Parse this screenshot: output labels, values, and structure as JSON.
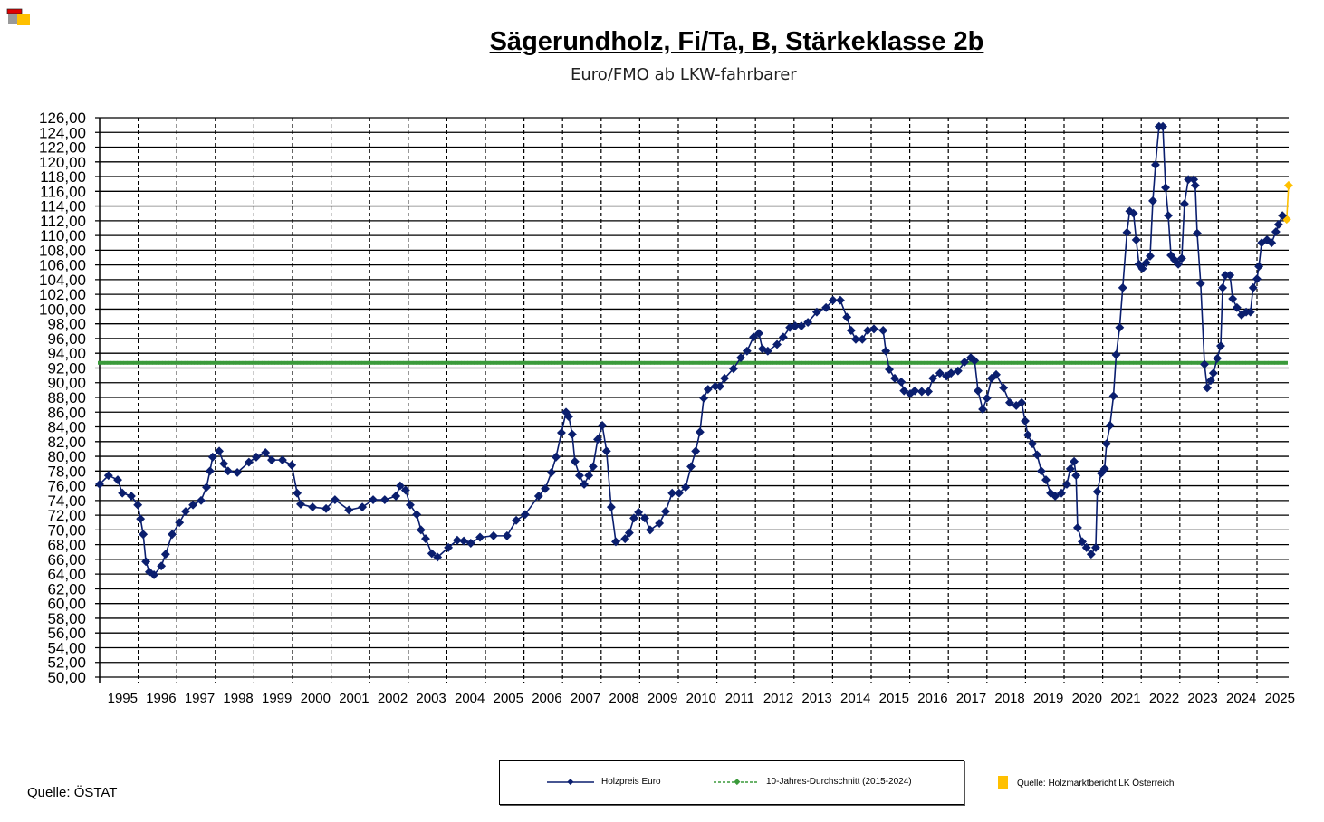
{
  "colors": {
    "series": "#0A1E6E",
    "average": "#3A9A3A",
    "estimate": "#FFC000",
    "grid": "#000000"
  },
  "legend": {
    "series_label": "Holzpreis Euro",
    "average_label": "10-Jahres-Durchschnitt (2015-2024)"
  },
  "source_left": "Quelle: ÖSTAT",
  "source_right": "Quelle: Holzmarktbericht LK Österreich",
  "chart_data": {
    "type": "line",
    "title": "Sägerundholz, Fi/Ta, B, Stärkeklasse 2b",
    "subtitle": "Euro/FMO ab LKW-fahrbarer",
    "ylim": [
      50,
      126
    ],
    "ytick_step": 2,
    "ytick_labels": [
      "126,00",
      "124,00",
      "122,00",
      "120,00",
      "118,00",
      "116,00",
      "114,00",
      "112,00",
      "110,00",
      "108,00",
      "106,00",
      "104,00",
      "102,00",
      "100,00",
      "98,00",
      "96,00",
      "94,00",
      "92,00",
      "90,00",
      "88,00",
      "86,00",
      "84,00",
      "82,00",
      "80,00",
      "78,00",
      "76,00",
      "74,00",
      "72,00",
      "70,00",
      "68,00",
      "66,00",
      "64,00",
      "62,00",
      "60,00",
      "58,00",
      "56,00",
      "54,00",
      "52,00",
      "50,00"
    ],
    "xlim": [
      1995,
      2025.83
    ],
    "xtick_labels": [
      "1995",
      "1996",
      "1997",
      "1998",
      "1999",
      "2000",
      "2001",
      "2002",
      "2003",
      "2004",
      "2005",
      "2006",
      "2007",
      "2008",
      "2009",
      "2010",
      "2011",
      "2012",
      "2013",
      "2014",
      "2015",
      "2016",
      "2017",
      "2018",
      "2019",
      "2020",
      "2021",
      "2022",
      "2023",
      "2024",
      "2025"
    ],
    "grid": true,
    "legend_position": "bottom",
    "series": [
      {
        "name": "Holzpreis Euro",
        "points": [
          [
            1995.0,
            76.2
          ],
          [
            1995.23,
            77.4
          ],
          [
            1995.47,
            76.8
          ],
          [
            1995.59,
            75.0
          ],
          [
            1995.82,
            74.6
          ],
          [
            1995.99,
            73.4
          ],
          [
            1996.06,
            71.5
          ],
          [
            1996.13,
            69.4
          ],
          [
            1996.2,
            65.7
          ],
          [
            1996.29,
            64.3
          ],
          [
            1996.41,
            63.9
          ],
          [
            1996.6,
            65.1
          ],
          [
            1996.71,
            66.7
          ],
          [
            1996.88,
            69.4
          ],
          [
            1997.07,
            71.0
          ],
          [
            1997.23,
            72.5
          ],
          [
            1997.42,
            73.4
          ],
          [
            1997.63,
            74.0
          ],
          [
            1997.77,
            75.8
          ],
          [
            1997.86,
            78.0
          ],
          [
            1997.93,
            79.9
          ],
          [
            1998.1,
            80.7
          ],
          [
            1998.22,
            79.0
          ],
          [
            1998.33,
            78.0
          ],
          [
            1998.57,
            77.8
          ],
          [
            1998.87,
            79.2
          ],
          [
            1999.06,
            79.9
          ],
          [
            1999.3,
            80.5
          ],
          [
            1999.46,
            79.5
          ],
          [
            1999.74,
            79.5
          ],
          [
            1999.98,
            78.8
          ],
          [
            2000.12,
            75.0
          ],
          [
            2000.21,
            73.5
          ],
          [
            2000.52,
            73.1
          ],
          [
            2000.87,
            72.9
          ],
          [
            2001.1,
            74.1
          ],
          [
            2001.46,
            72.7
          ],
          [
            2001.81,
            73.1
          ],
          [
            2002.09,
            74.1
          ],
          [
            2002.39,
            74.1
          ],
          [
            2002.68,
            74.6
          ],
          [
            2002.79,
            76.0
          ],
          [
            2002.93,
            75.4
          ],
          [
            2003.05,
            73.4
          ],
          [
            2003.22,
            72.1
          ],
          [
            2003.33,
            70.0
          ],
          [
            2003.45,
            68.8
          ],
          [
            2003.61,
            66.8
          ],
          [
            2003.76,
            66.3
          ],
          [
            2004.04,
            67.6
          ],
          [
            2004.27,
            68.6
          ],
          [
            2004.44,
            68.5
          ],
          [
            2004.62,
            68.2
          ],
          [
            2004.86,
            69.0
          ],
          [
            2005.21,
            69.2
          ],
          [
            2005.56,
            69.2
          ],
          [
            2005.8,
            71.3
          ],
          [
            2006.03,
            72.1
          ],
          [
            2006.38,
            74.6
          ],
          [
            2006.55,
            75.6
          ],
          [
            2006.71,
            77.8
          ],
          [
            2006.83,
            79.9
          ],
          [
            2006.97,
            83.2
          ],
          [
            2007.09,
            86.0
          ],
          [
            2007.16,
            85.4
          ],
          [
            2007.25,
            83.0
          ],
          [
            2007.32,
            79.3
          ],
          [
            2007.44,
            77.4
          ],
          [
            2007.56,
            76.2
          ],
          [
            2007.68,
            77.4
          ],
          [
            2007.79,
            78.6
          ],
          [
            2007.91,
            82.3
          ],
          [
            2008.03,
            84.2
          ],
          [
            2008.14,
            80.7
          ],
          [
            2008.26,
            73.1
          ],
          [
            2008.38,
            68.4
          ],
          [
            2008.62,
            68.8
          ],
          [
            2008.73,
            69.6
          ],
          [
            2008.85,
            71.6
          ],
          [
            2008.97,
            72.4
          ],
          [
            2009.13,
            71.6
          ],
          [
            2009.27,
            70.0
          ],
          [
            2009.51,
            70.9
          ],
          [
            2009.67,
            72.5
          ],
          [
            2009.84,
            75.0
          ],
          [
            2010.02,
            75.0
          ],
          [
            2010.19,
            75.8
          ],
          [
            2010.33,
            78.6
          ],
          [
            2010.45,
            80.7
          ],
          [
            2010.56,
            83.3
          ],
          [
            2010.66,
            87.9
          ],
          [
            2010.77,
            89.1
          ],
          [
            2010.96,
            89.5
          ],
          [
            2011.08,
            89.5
          ],
          [
            2011.2,
            90.6
          ],
          [
            2011.43,
            91.9
          ],
          [
            2011.62,
            93.4
          ],
          [
            2011.78,
            94.3
          ],
          [
            2011.95,
            96.2
          ],
          [
            2012.09,
            96.7
          ],
          [
            2012.18,
            94.6
          ],
          [
            2012.32,
            94.3
          ],
          [
            2012.56,
            95.2
          ],
          [
            2012.72,
            96.2
          ],
          [
            2012.89,
            97.5
          ],
          [
            2013.03,
            97.7
          ],
          [
            2013.19,
            97.7
          ],
          [
            2013.36,
            98.2
          ],
          [
            2013.59,
            99.6
          ],
          [
            2013.83,
            100.2
          ],
          [
            2014.01,
            101.2
          ],
          [
            2014.2,
            101.2
          ],
          [
            2014.37,
            98.9
          ],
          [
            2014.48,
            97.1
          ],
          [
            2014.6,
            95.9
          ],
          [
            2014.77,
            95.9
          ],
          [
            2014.91,
            97.1
          ],
          [
            2015.07,
            97.3
          ],
          [
            2015.31,
            97.1
          ],
          [
            2015.38,
            94.3
          ],
          [
            2015.47,
            91.8
          ],
          [
            2015.61,
            90.6
          ],
          [
            2015.78,
            90.1
          ],
          [
            2015.85,
            88.9
          ],
          [
            2016.01,
            88.5
          ],
          [
            2016.13,
            88.9
          ],
          [
            2016.31,
            88.8
          ],
          [
            2016.48,
            88.8
          ],
          [
            2016.6,
            90.6
          ],
          [
            2016.78,
            91.3
          ],
          [
            2016.95,
            90.9
          ],
          [
            2017.07,
            91.3
          ],
          [
            2017.25,
            91.6
          ],
          [
            2017.42,
            92.8
          ],
          [
            2017.58,
            93.4
          ],
          [
            2017.68,
            93.0
          ],
          [
            2017.77,
            88.9
          ],
          [
            2017.89,
            86.4
          ],
          [
            2018.0,
            87.9
          ],
          [
            2018.12,
            90.6
          ],
          [
            2018.24,
            91.1
          ],
          [
            2018.43,
            89.3
          ],
          [
            2018.59,
            87.3
          ],
          [
            2018.76,
            86.9
          ],
          [
            2018.9,
            87.3
          ],
          [
            2018.99,
            84.8
          ],
          [
            2019.06,
            82.9
          ],
          [
            2019.18,
            81.7
          ],
          [
            2019.3,
            80.2
          ],
          [
            2019.41,
            78.0
          ],
          [
            2019.53,
            76.8
          ],
          [
            2019.65,
            75.0
          ],
          [
            2019.77,
            74.6
          ],
          [
            2019.93,
            75.0
          ],
          [
            2020.07,
            76.2
          ],
          [
            2020.16,
            78.3
          ],
          [
            2020.26,
            79.3
          ],
          [
            2020.31,
            77.4
          ],
          [
            2020.35,
            70.3
          ],
          [
            2020.47,
            68.4
          ],
          [
            2020.58,
            67.6
          ],
          [
            2020.7,
            66.7
          ],
          [
            2020.82,
            67.6
          ],
          [
            2020.86,
            75.2
          ],
          [
            2020.96,
            77.7
          ],
          [
            2021.05,
            78.3
          ],
          [
            2021.1,
            81.7
          ],
          [
            2021.19,
            84.2
          ],
          [
            2021.28,
            88.2
          ],
          [
            2021.35,
            93.8
          ],
          [
            2021.44,
            97.5
          ],
          [
            2021.52,
            102.9
          ],
          [
            2021.63,
            110.4
          ],
          [
            2021.7,
            113.3
          ],
          [
            2021.8,
            113.0
          ],
          [
            2021.87,
            109.4
          ],
          [
            2021.94,
            106.1
          ],
          [
            2022.03,
            105.5
          ],
          [
            2022.13,
            106.3
          ],
          [
            2022.23,
            107.2
          ],
          [
            2022.3,
            114.7
          ],
          [
            2022.37,
            119.6
          ],
          [
            2022.46,
            124.8
          ],
          [
            2022.56,
            124.8
          ],
          [
            2022.63,
            116.5
          ],
          [
            2022.7,
            112.7
          ],
          [
            2022.77,
            107.3
          ],
          [
            2022.86,
            106.7
          ],
          [
            2022.96,
            106.1
          ],
          [
            2023.05,
            106.9
          ],
          [
            2023.12,
            114.3
          ],
          [
            2023.22,
            117.6
          ],
          [
            2023.36,
            117.6
          ],
          [
            2023.4,
            116.8
          ],
          [
            2023.45,
            110.3
          ],
          [
            2023.54,
            103.5
          ],
          [
            2023.64,
            92.5
          ],
          [
            2023.71,
            89.3
          ],
          [
            2023.8,
            90.3
          ],
          [
            2023.87,
            91.3
          ],
          [
            2023.97,
            93.3
          ],
          [
            2024.06,
            95.0
          ],
          [
            2024.11,
            102.9
          ],
          [
            2024.18,
            104.6
          ],
          [
            2024.3,
            104.6
          ],
          [
            2024.37,
            101.4
          ],
          [
            2024.48,
            100.2
          ],
          [
            2024.6,
            99.2
          ],
          [
            2024.72,
            99.6
          ],
          [
            2024.83,
            99.6
          ],
          [
            2024.9,
            102.9
          ],
          [
            2025.0,
            104.1
          ],
          [
            2025.05,
            105.8
          ],
          [
            2025.12,
            109.0
          ],
          [
            2025.26,
            109.4
          ],
          [
            2025.38,
            109.0
          ],
          [
            2025.49,
            110.5
          ],
          [
            2025.56,
            111.5
          ],
          [
            2025.66,
            112.7
          ]
        ]
      },
      {
        "name": "Holzmarktbericht LK Österreich",
        "points": [
          [
            2025.77,
            112.2
          ],
          [
            2025.82,
            116.8
          ]
        ]
      },
      {
        "name": "10-Jahres-Durchschnitt (2015-2024)",
        "constant": 92.7
      }
    ]
  }
}
